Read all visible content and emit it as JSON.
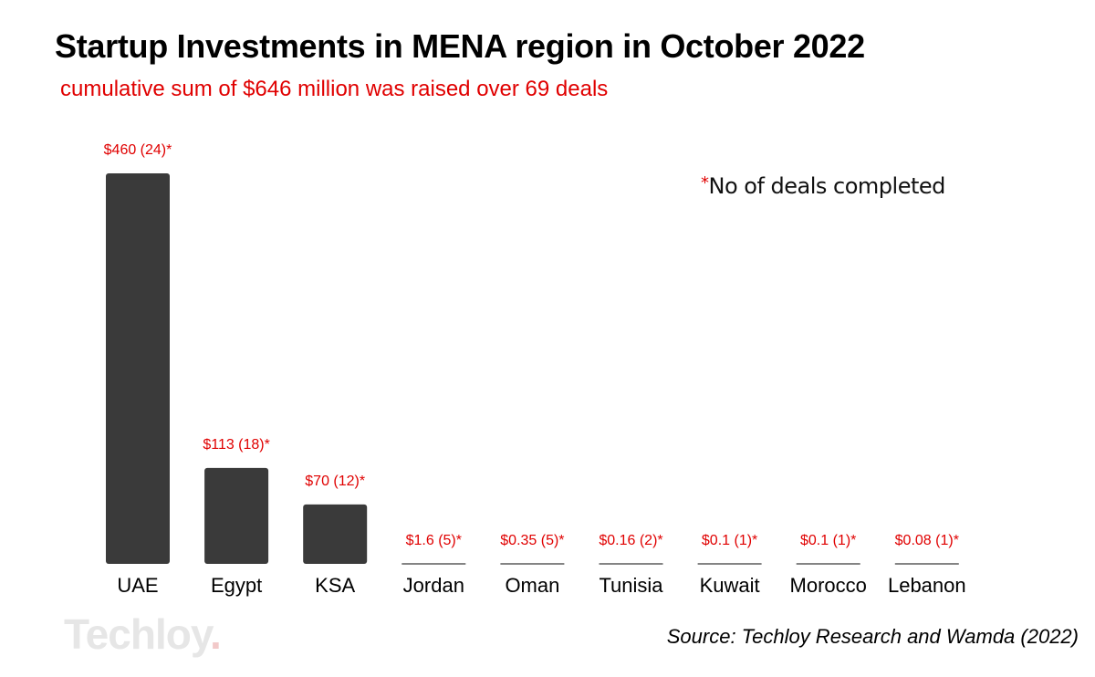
{
  "chart_data": {
    "type": "bar",
    "title": "Startup Investments in MENA region in October 2022",
    "subtitle": "cumulative sum of $646 million was raised over 69 deals",
    "categories": [
      "UAE",
      "Egypt",
      "KSA",
      "Jordan",
      "Oman",
      "Tunisia",
      "Kuwait",
      "Morocco",
      "Lebanon"
    ],
    "values": [
      460,
      113,
      70,
      1.6,
      0.35,
      0.16,
      0.1,
      0.1,
      0.08
    ],
    "deals": [
      24,
      18,
      12,
      5,
      5,
      2,
      1,
      1,
      1
    ],
    "data_labels": [
      "$460 (24)*",
      "$113 (18)*",
      "$70 (12)*",
      "$1.6 (5)*",
      "$0.35 (5)*",
      "$0.16 (2)*",
      "$0.1 (1)*",
      "$0.1 (1)*",
      "$0.08 (1)*"
    ],
    "legend_note": "No of deals completed",
    "legend_marker": "*",
    "source": "Source: Techloy Research and Wamda (2022)",
    "xlabel": "",
    "ylabel": "",
    "ylim": [
      0,
      460
    ],
    "grid": false,
    "legend_placement": "top-right",
    "colors": {
      "bar": "#3a3a3a",
      "label": "#e00000",
      "title": "#000000",
      "subtitle": "#e00000"
    }
  },
  "logo": {
    "text": "Techloy",
    "dot": "."
  }
}
